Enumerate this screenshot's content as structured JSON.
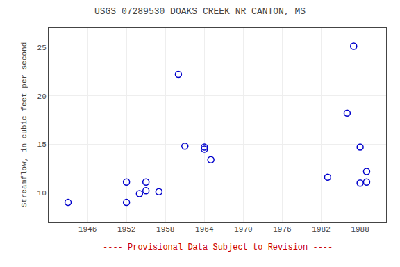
{
  "chart_data": {
    "type": "scatter",
    "title": "USGS 07289530 DOAKS CREEK NR CANTON, MS",
    "ylabel": "Streamflow, in cubic feet per second",
    "x": [
      1943,
      1952,
      1952,
      1954,
      1955,
      1955,
      1957,
      1960,
      1961,
      1964,
      1964,
      1965,
      1983,
      1986,
      1987,
      1988,
      1988,
      1989,
      1989
    ],
    "values": [
      9.0,
      11.1,
      9.0,
      9.9,
      11.1,
      10.2,
      10.1,
      22.2,
      14.8,
      14.7,
      14.5,
      13.4,
      11.6,
      18.2,
      25.1,
      14.7,
      11.0,
      11.1,
      12.2
    ],
    "color": "#0000CC",
    "marker": "circle-open",
    "xlim": [
      1940,
      1992
    ],
    "ylim": [
      7,
      27
    ],
    "xticks": [
      1946,
      1952,
      1958,
      1964,
      1970,
      1976,
      1982,
      1988
    ],
    "yticks": [
      10,
      15,
      20,
      25
    ],
    "grid": true,
    "annotations": [
      {
        "text": "---- Provisional Data Subject to Revision ----",
        "color": "#cc0000"
      }
    ]
  }
}
